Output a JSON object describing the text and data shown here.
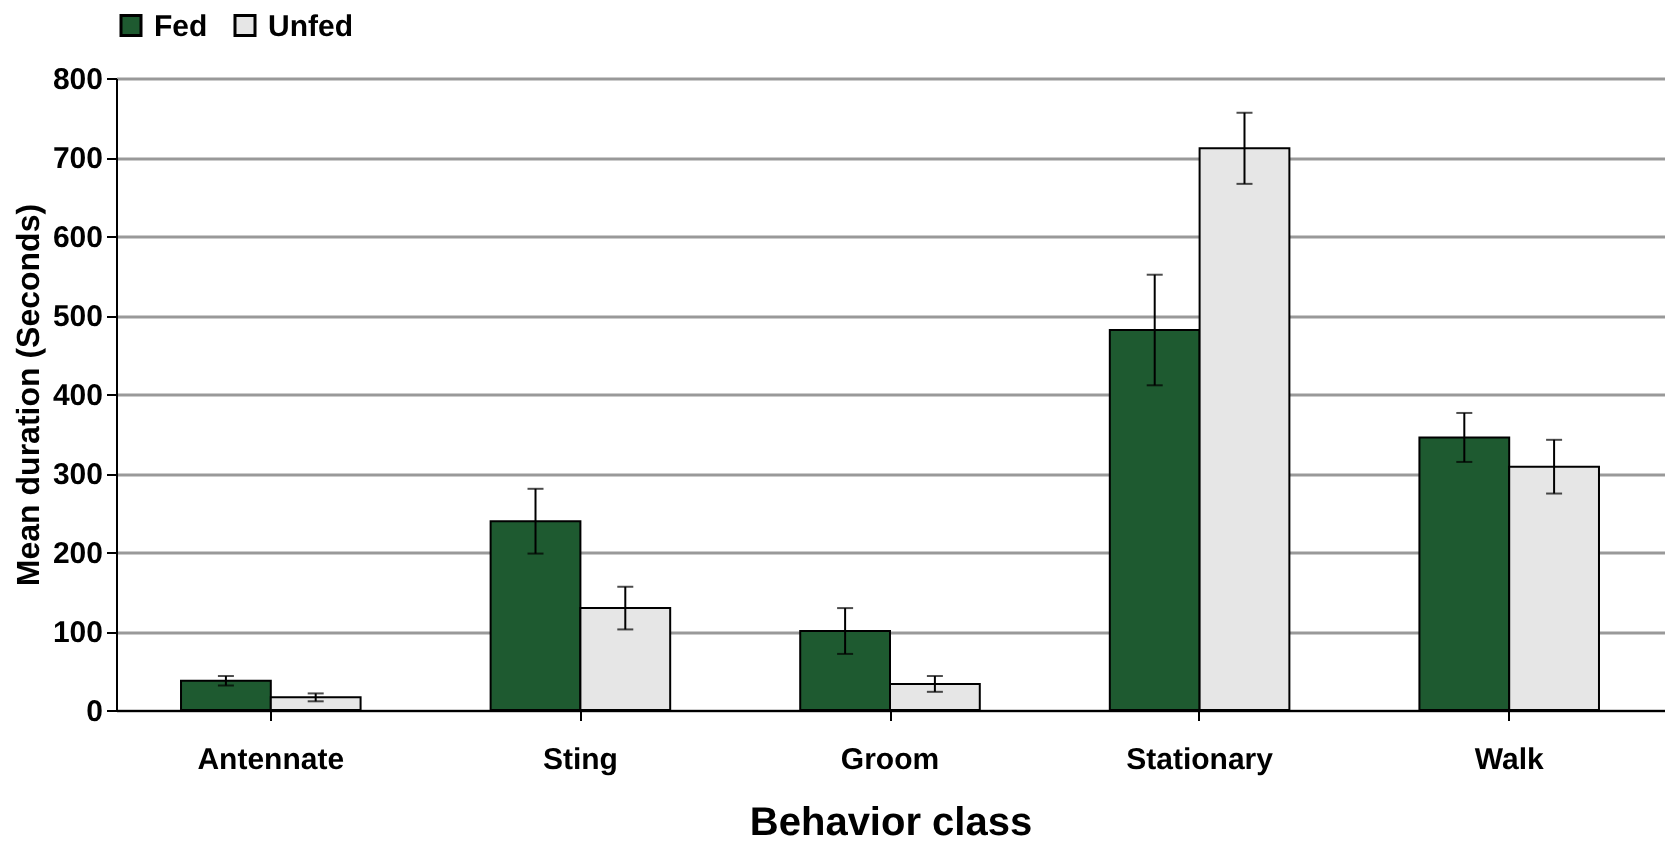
{
  "chart_data": {
    "type": "bar",
    "xlabel": "Behavior class",
    "ylabel": "Mean duration (Seconds)",
    "categories": [
      "Antennate",
      "Sting",
      "Groom",
      "Stationary",
      "Walk"
    ],
    "series": [
      {
        "name": "Fed",
        "color": "#1e5a30",
        "values": [
          37,
          239,
          100,
          481,
          345
        ],
        "errors": [
          6,
          41,
          29,
          70,
          31
        ]
      },
      {
        "name": "Unfed",
        "color": "#e6e6e6",
        "values": [
          16,
          129,
          33,
          711,
          308
        ],
        "errors": [
          5,
          27,
          10,
          45,
          34
        ]
      }
    ],
    "ylim": [
      0,
      800
    ],
    "yticks": [
      0,
      100,
      200,
      300,
      400,
      500,
      600,
      700,
      800
    ],
    "grid": "y",
    "legend": "top"
  }
}
